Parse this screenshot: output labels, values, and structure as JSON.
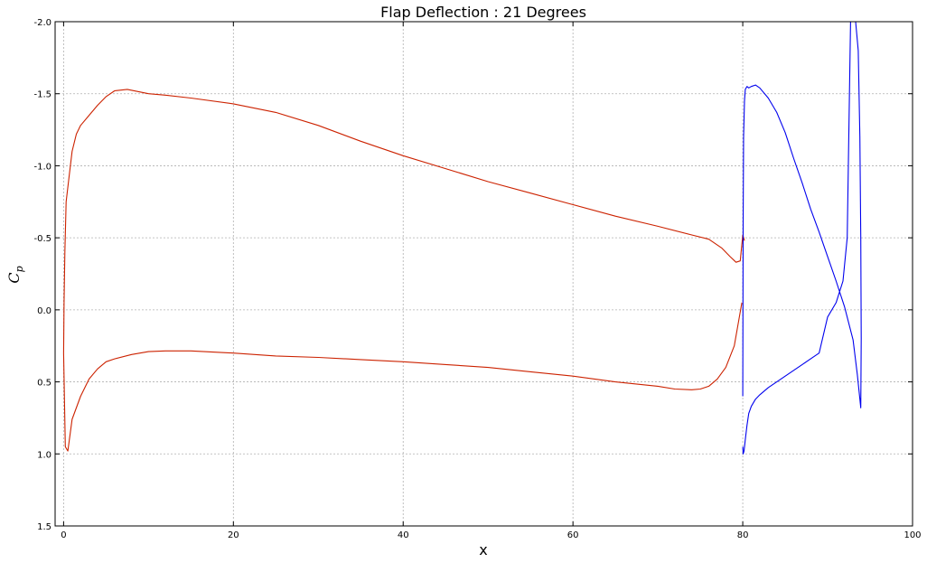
{
  "chart_data": {
    "type": "line",
    "title": "Flap Deflection : 21 Degrees",
    "xlabel": "x",
    "ylabel": {
      "main": "C",
      "sub": "p"
    },
    "xlim": [
      -1,
      100
    ],
    "ylim": [
      1.5,
      -2.0
    ],
    "y_inverted": true,
    "grid": true,
    "xticks": [
      0,
      20,
      40,
      60,
      80,
      100
    ],
    "xtick_labels": [
      "0",
      "20",
      "40",
      "60",
      "80",
      "100"
    ],
    "yticks": [
      -2.0,
      -1.5,
      -1.0,
      -0.5,
      0.0,
      0.5,
      1.0,
      1.5
    ],
    "ytick_labels": [
      "-2.0",
      "-1.5",
      "-1.0",
      "-0.5",
      "0.0",
      "0.5",
      "1.0",
      "1.5"
    ],
    "series": [
      {
        "color": "#cc2200",
        "x": [
          79.9,
          79.6,
          79.0,
          78.0,
          77.0,
          76.0,
          75.0,
          74.0,
          72.0,
          70.0,
          65.0,
          60.0,
          55.0,
          50.0,
          45.0,
          40.0,
          35.0,
          30.0,
          25.0,
          20.0,
          15.0,
          12.0,
          10.0,
          8.0,
          6.0,
          5.0,
          4.0,
          3.0,
          2.0,
          1.0,
          0.5,
          0.2,
          0.0,
          0.05,
          0.15,
          0.3,
          0.6,
          1.0,
          1.5,
          2.0,
          3.0,
          4.0,
          5.0,
          6.0,
          7.5,
          10.0,
          12.0,
          15.0,
          20.0,
          25.0,
          30.0,
          35.0,
          40.0,
          45.0,
          50.0,
          55.0,
          60.0,
          65.0,
          70.0,
          74.0,
          76.0,
          77.5,
          78.5,
          79.2,
          79.7,
          80.0,
          80.2
        ],
        "y": [
          -0.05,
          0.05,
          0.25,
          0.4,
          0.48,
          0.53,
          0.55,
          0.555,
          0.55,
          0.53,
          0.5,
          0.46,
          0.43,
          0.4,
          0.38,
          0.36,
          0.345,
          0.33,
          0.32,
          0.3,
          0.285,
          0.285,
          0.29,
          0.31,
          0.34,
          0.36,
          0.41,
          0.48,
          0.6,
          0.76,
          0.98,
          0.95,
          0.3,
          -0.05,
          -0.4,
          -0.75,
          -0.9,
          -1.1,
          -1.22,
          -1.28,
          -1.35,
          -1.42,
          -1.48,
          -1.52,
          -1.53,
          -1.5,
          -1.49,
          -1.47,
          -1.43,
          -1.37,
          -1.28,
          -1.17,
          -1.07,
          -0.98,
          -0.89,
          -0.81,
          -0.73,
          -0.65,
          -0.58,
          -0.52,
          -0.49,
          -0.43,
          -0.37,
          -0.33,
          -0.34,
          -0.52,
          -0.48
        ]
      },
      {
        "color": "#0000ee",
        "x": [
          80.0,
          80.05,
          80.1,
          80.2,
          80.3,
          80.5,
          80.7,
          81.0,
          81.5,
          82.0,
          83.0,
          84.0,
          85.0,
          86.0,
          87.0,
          88.0,
          89.0,
          90.0,
          91.0,
          92.0,
          93.0,
          93.5,
          93.9,
          93.95,
          93.9,
          93.8,
          93.6,
          93.3,
          93.0,
          92.7,
          92.3,
          91.8,
          91.0,
          90.0,
          89.0,
          88.0,
          87.0,
          86.0,
          85.0,
          84.0,
          83.0,
          82.0,
          81.5,
          81.0,
          80.7,
          80.5,
          80.3,
          80.15,
          80.05,
          80.0
        ],
        "y": [
          0.6,
          -0.6,
          -1.2,
          -1.45,
          -1.53,
          -1.55,
          -1.54,
          -1.55,
          -1.56,
          -1.54,
          -1.47,
          -1.37,
          -1.23,
          -1.05,
          -0.88,
          -0.7,
          -0.54,
          -0.37,
          -0.2,
          -0.02,
          0.21,
          0.45,
          0.68,
          0.2,
          -0.5,
          -1.2,
          -1.8,
          -2.0,
          -2.0,
          -2.0,
          -0.5,
          -0.2,
          -0.05,
          0.05,
          0.3,
          0.34,
          0.38,
          0.42,
          0.46,
          0.5,
          0.54,
          0.59,
          0.62,
          0.67,
          0.72,
          0.8,
          0.9,
          0.98,
          1.0,
          0.95
        ]
      }
    ]
  }
}
